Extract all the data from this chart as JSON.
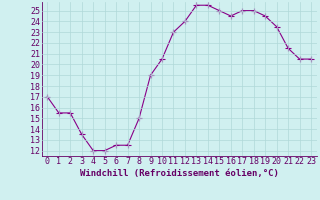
{
  "x": [
    0,
    1,
    2,
    3,
    4,
    5,
    6,
    7,
    8,
    9,
    10,
    11,
    12,
    13,
    14,
    15,
    16,
    17,
    18,
    19,
    20,
    21,
    22,
    23
  ],
  "y": [
    17,
    15.5,
    15.5,
    13.5,
    12,
    12,
    12.5,
    12.5,
    15,
    19,
    20.5,
    23,
    24,
    25.5,
    25.5,
    25,
    24.5,
    25,
    25,
    24.5,
    23.5,
    21.5,
    20.5,
    20.5
  ],
  "line_color": "#880088",
  "marker_color": "#880088",
  "bg_color": "#d0f0f0",
  "grid_color": "#b0d8d8",
  "axis_color": "#660066",
  "xlabel": "Windchill (Refroidissement éolien,°C)",
  "ylim_min": 11.5,
  "ylim_max": 25.8,
  "xlim_min": -0.5,
  "xlim_max": 23.5,
  "yticks": [
    12,
    13,
    14,
    15,
    16,
    17,
    18,
    19,
    20,
    21,
    22,
    23,
    24,
    25
  ],
  "xticks": [
    0,
    1,
    2,
    3,
    4,
    5,
    6,
    7,
    8,
    9,
    10,
    11,
    12,
    13,
    14,
    15,
    16,
    17,
    18,
    19,
    20,
    21,
    22,
    23
  ],
  "label_fontsize": 6.5,
  "tick_fontsize": 6.0,
  "marker_size": 2.0,
  "line_width": 0.8
}
